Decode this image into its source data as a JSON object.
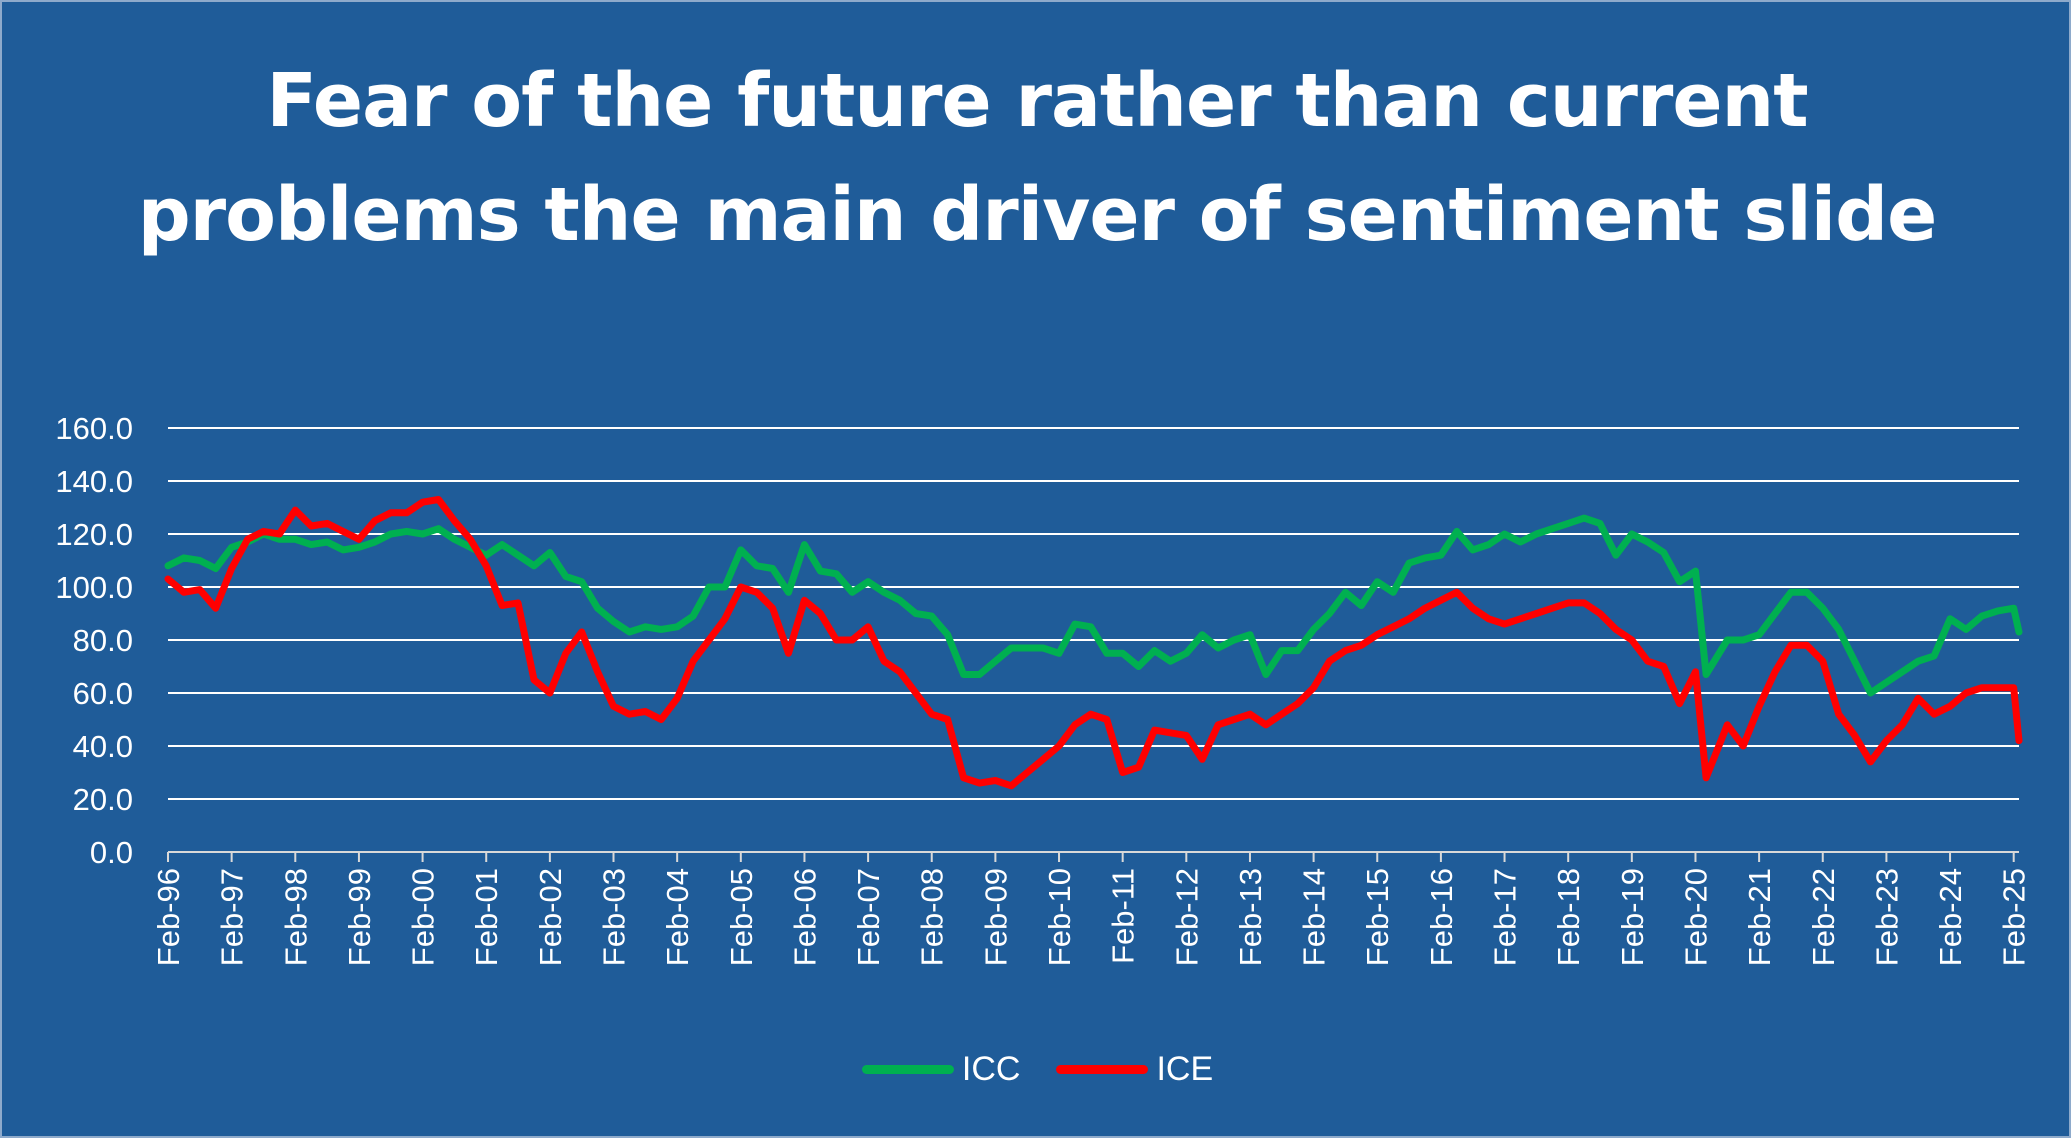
{
  "chart_data": {
    "type": "line",
    "title": "Fear of the future rather than current problems the main driver of sentiment slide",
    "xlabel": "",
    "ylabel": "",
    "ylim": [
      0,
      160
    ],
    "yticks": [
      "0.0",
      "20.0",
      "40.0",
      "60.0",
      "80.0",
      "100.0",
      "120.0",
      "140.0",
      "160.0"
    ],
    "x_range": [
      "1996-02",
      "2025-03"
    ],
    "x_tick_labels": [
      "Feb-96",
      "Feb-97",
      "Feb-98",
      "Feb-99",
      "Feb-00",
      "Feb-01",
      "Feb-02",
      "Feb-03",
      "Feb-04",
      "Feb-05",
      "Feb-06",
      "Feb-07",
      "Feb-08",
      "Feb-09",
      "Feb-10",
      "Feb-11",
      "Feb-12",
      "Feb-13",
      "Feb-14",
      "Feb-15",
      "Feb-16",
      "Feb-17",
      "Feb-18",
      "Feb-19",
      "Feb-20",
      "Feb-21",
      "Feb-22",
      "Feb-23",
      "Feb-24",
      "Feb-25"
    ],
    "grid": "horizontal",
    "legend_position": "bottom",
    "series": [
      {
        "name": "ICC",
        "color": "#00b050",
        "points": [
          [
            "1996-02",
            108
          ],
          [
            "1996-05",
            111
          ],
          [
            "1996-08",
            110
          ],
          [
            "1996-11",
            107
          ],
          [
            "1997-02",
            115
          ],
          [
            "1997-05",
            117
          ],
          [
            "1997-08",
            120
          ],
          [
            "1997-11",
            118
          ],
          [
            "1998-02",
            118
          ],
          [
            "1998-05",
            116
          ],
          [
            "1998-08",
            117
          ],
          [
            "1998-11",
            114
          ],
          [
            "1999-02",
            115
          ],
          [
            "1999-05",
            117
          ],
          [
            "1999-08",
            120
          ],
          [
            "1999-11",
            121
          ],
          [
            "2000-02",
            120
          ],
          [
            "2000-05",
            122
          ],
          [
            "2000-08",
            118
          ],
          [
            "2000-11",
            115
          ],
          [
            "2001-02",
            112
          ],
          [
            "2001-05",
            116
          ],
          [
            "2001-08",
            112
          ],
          [
            "2001-11",
            108
          ],
          [
            "2002-02",
            113
          ],
          [
            "2002-05",
            104
          ],
          [
            "2002-08",
            102
          ],
          [
            "2002-11",
            92
          ],
          [
            "2003-02",
            87
          ],
          [
            "2003-05",
            83
          ],
          [
            "2003-08",
            85
          ],
          [
            "2003-11",
            84
          ],
          [
            "2004-02",
            85
          ],
          [
            "2004-05",
            89
          ],
          [
            "2004-08",
            100
          ],
          [
            "2004-11",
            100
          ],
          [
            "2005-02",
            114
          ],
          [
            "2005-05",
            108
          ],
          [
            "2005-08",
            107
          ],
          [
            "2005-11",
            98
          ],
          [
            "2006-02",
            116
          ],
          [
            "2006-05",
            106
          ],
          [
            "2006-08",
            105
          ],
          [
            "2006-11",
            98
          ],
          [
            "2007-02",
            102
          ],
          [
            "2007-05",
            98
          ],
          [
            "2007-08",
            95
          ],
          [
            "2007-11",
            90
          ],
          [
            "2008-02",
            89
          ],
          [
            "2008-05",
            82
          ],
          [
            "2008-08",
            67
          ],
          [
            "2008-11",
            67
          ],
          [
            "2009-02",
            72
          ],
          [
            "2009-05",
            77
          ],
          [
            "2009-08",
            77
          ],
          [
            "2009-11",
            77
          ],
          [
            "2010-02",
            75
          ],
          [
            "2010-05",
            86
          ],
          [
            "2010-08",
            85
          ],
          [
            "2010-11",
            75
          ],
          [
            "2011-02",
            75
          ],
          [
            "2011-05",
            70
          ],
          [
            "2011-08",
            76
          ],
          [
            "2011-11",
            72
          ],
          [
            "2012-02",
            75
          ],
          [
            "2012-05",
            82
          ],
          [
            "2012-08",
            77
          ],
          [
            "2012-11",
            80
          ],
          [
            "2013-02",
            82
          ],
          [
            "2013-05",
            67
          ],
          [
            "2013-08",
            76
          ],
          [
            "2013-11",
            76
          ],
          [
            "2014-02",
            84
          ],
          [
            "2014-05",
            90
          ],
          [
            "2014-08",
            98
          ],
          [
            "2014-11",
            93
          ],
          [
            "2015-02",
            102
          ],
          [
            "2015-05",
            98
          ],
          [
            "2015-08",
            109
          ],
          [
            "2015-11",
            111
          ],
          [
            "2016-02",
            112
          ],
          [
            "2016-05",
            121
          ],
          [
            "2016-08",
            114
          ],
          [
            "2016-11",
            116
          ],
          [
            "2017-02",
            120
          ],
          [
            "2017-05",
            117
          ],
          [
            "2017-08",
            120
          ],
          [
            "2017-11",
            122
          ],
          [
            "2018-02",
            124
          ],
          [
            "2018-05",
            126
          ],
          [
            "2018-08",
            124
          ],
          [
            "2018-11",
            112
          ],
          [
            "2019-02",
            120
          ],
          [
            "2019-05",
            117
          ],
          [
            "2019-08",
            113
          ],
          [
            "2019-11",
            102
          ],
          [
            "2020-02",
            106
          ],
          [
            "2020-04",
            67
          ],
          [
            "2020-08",
            80
          ],
          [
            "2020-11",
            80
          ],
          [
            "2021-02",
            82
          ],
          [
            "2021-05",
            90
          ],
          [
            "2021-08",
            98
          ],
          [
            "2021-11",
            98
          ],
          [
            "2022-02",
            92
          ],
          [
            "2022-05",
            84
          ],
          [
            "2022-08",
            72
          ],
          [
            "2022-11",
            60
          ],
          [
            "2023-02",
            64
          ],
          [
            "2023-05",
            68
          ],
          [
            "2023-08",
            72
          ],
          [
            "2023-11",
            74
          ],
          [
            "2024-02",
            88
          ],
          [
            "2024-05",
            84
          ],
          [
            "2024-08",
            89
          ],
          [
            "2024-11",
            91
          ],
          [
            "2025-02",
            92
          ],
          [
            "2025-03",
            83
          ]
        ]
      },
      {
        "name": "ICE",
        "color": "#ff0000",
        "points": [
          [
            "1996-02",
            103
          ],
          [
            "1996-05",
            98
          ],
          [
            "1996-08",
            99
          ],
          [
            "1996-11",
            92
          ],
          [
            "1997-02",
            107
          ],
          [
            "1997-05",
            118
          ],
          [
            "1997-08",
            121
          ],
          [
            "1997-11",
            120
          ],
          [
            "1998-02",
            129
          ],
          [
            "1998-05",
            123
          ],
          [
            "1998-08",
            124
          ],
          [
            "1998-11",
            121
          ],
          [
            "1999-02",
            118
          ],
          [
            "1999-05",
            125
          ],
          [
            "1999-08",
            128
          ],
          [
            "1999-11",
            128
          ],
          [
            "2000-02",
            132
          ],
          [
            "2000-05",
            133
          ],
          [
            "2000-08",
            125
          ],
          [
            "2000-11",
            118
          ],
          [
            "2001-02",
            108
          ],
          [
            "2001-05",
            93
          ],
          [
            "2001-08",
            94
          ],
          [
            "2001-11",
            65
          ],
          [
            "2002-02",
            60
          ],
          [
            "2002-05",
            75
          ],
          [
            "2002-08",
            83
          ],
          [
            "2002-11",
            68
          ],
          [
            "2003-02",
            55
          ],
          [
            "2003-05",
            52
          ],
          [
            "2003-08",
            53
          ],
          [
            "2003-11",
            50
          ],
          [
            "2004-02",
            58
          ],
          [
            "2004-05",
            72
          ],
          [
            "2004-08",
            80
          ],
          [
            "2004-11",
            88
          ],
          [
            "2005-02",
            100
          ],
          [
            "2005-05",
            98
          ],
          [
            "2005-08",
            92
          ],
          [
            "2005-11",
            75
          ],
          [
            "2006-02",
            95
          ],
          [
            "2006-05",
            90
          ],
          [
            "2006-08",
            80
          ],
          [
            "2006-11",
            80
          ],
          [
            "2007-02",
            85
          ],
          [
            "2007-05",
            72
          ],
          [
            "2007-08",
            68
          ],
          [
            "2007-11",
            60
          ],
          [
            "2008-02",
            52
          ],
          [
            "2008-05",
            50
          ],
          [
            "2008-08",
            28
          ],
          [
            "2008-11",
            26
          ],
          [
            "2009-02",
            27
          ],
          [
            "2009-05",
            25
          ],
          [
            "2009-08",
            30
          ],
          [
            "2009-11",
            35
          ],
          [
            "2010-02",
            40
          ],
          [
            "2010-05",
            48
          ],
          [
            "2010-08",
            52
          ],
          [
            "2010-11",
            50
          ],
          [
            "2011-02",
            30
          ],
          [
            "2011-05",
            32
          ],
          [
            "2011-08",
            46
          ],
          [
            "2011-11",
            45
          ],
          [
            "2012-02",
            44
          ],
          [
            "2012-05",
            35
          ],
          [
            "2012-08",
            48
          ],
          [
            "2012-11",
            50
          ],
          [
            "2013-02",
            52
          ],
          [
            "2013-05",
            48
          ],
          [
            "2013-08",
            52
          ],
          [
            "2013-11",
            56
          ],
          [
            "2014-02",
            62
          ],
          [
            "2014-05",
            72
          ],
          [
            "2014-08",
            76
          ],
          [
            "2014-11",
            78
          ],
          [
            "2015-02",
            82
          ],
          [
            "2015-05",
            85
          ],
          [
            "2015-08",
            88
          ],
          [
            "2015-11",
            92
          ],
          [
            "2016-02",
            95
          ],
          [
            "2016-05",
            98
          ],
          [
            "2016-08",
            92
          ],
          [
            "2016-11",
            88
          ],
          [
            "2017-02",
            86
          ],
          [
            "2017-05",
            88
          ],
          [
            "2017-08",
            90
          ],
          [
            "2017-11",
            92
          ],
          [
            "2018-02",
            94
          ],
          [
            "2018-05",
            94
          ],
          [
            "2018-08",
            90
          ],
          [
            "2018-11",
            84
          ],
          [
            "2019-02",
            80
          ],
          [
            "2019-05",
            72
          ],
          [
            "2019-08",
            70
          ],
          [
            "2019-11",
            56
          ],
          [
            "2020-02",
            68
          ],
          [
            "2020-04",
            28
          ],
          [
            "2020-08",
            48
          ],
          [
            "2020-11",
            40
          ],
          [
            "2021-02",
            55
          ],
          [
            "2021-05",
            68
          ],
          [
            "2021-08",
            78
          ],
          [
            "2021-11",
            78
          ],
          [
            "2022-02",
            72
          ],
          [
            "2022-05",
            52
          ],
          [
            "2022-08",
            44
          ],
          [
            "2022-11",
            34
          ],
          [
            "2023-02",
            42
          ],
          [
            "2023-05",
            48
          ],
          [
            "2023-08",
            58
          ],
          [
            "2023-11",
            52
          ],
          [
            "2024-02",
            55
          ],
          [
            "2024-05",
            60
          ],
          [
            "2024-08",
            62
          ],
          [
            "2024-11",
            62
          ],
          [
            "2025-02",
            62
          ],
          [
            "2025-03",
            42
          ]
        ]
      }
    ]
  }
}
